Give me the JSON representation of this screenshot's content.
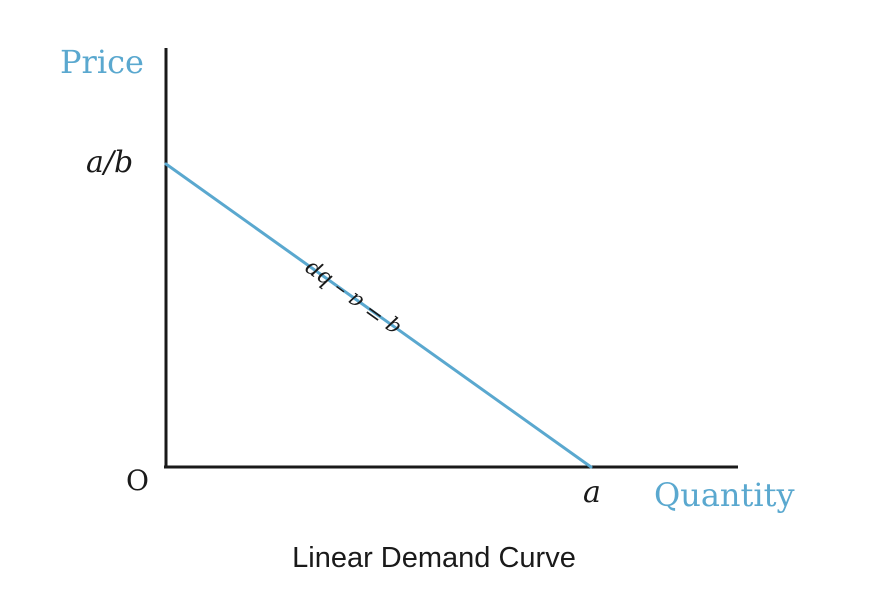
{
  "chart_data": {
    "type": "line",
    "title": "",
    "caption": "Linear Demand Curve",
    "xlabel": "Quantity",
    "ylabel": "Price",
    "origin_label": "O",
    "x_tick_label": "a",
    "y_tick_label": "a/b",
    "curve_label": "q = a – bp",
    "grid": false,
    "series": [
      {
        "values": [
          {
            "x": 0,
            "y": 1
          },
          {
            "x": 1,
            "y": 0
          }
        ]
      }
    ],
    "xlim": [
      0,
      1.35
    ],
    "ylim": [
      0,
      1.34
    ]
  },
  "colors": {
    "line": "#5aa8cf",
    "axis_label": "#5aa8cf",
    "axes": "#1a1a1a",
    "text": "#1a1a1a"
  }
}
